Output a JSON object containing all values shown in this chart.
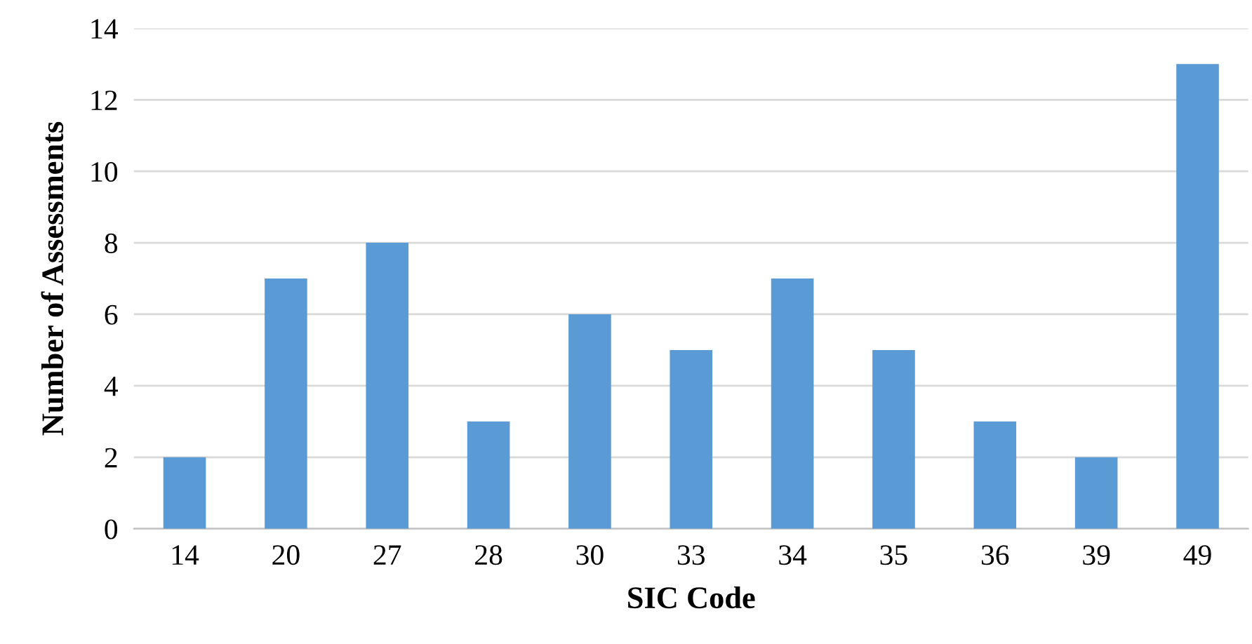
{
  "chart_data": {
    "type": "bar",
    "xlabel": "SIC Code",
    "ylabel": "Number of Assessments",
    "categories": [
      "14",
      "20",
      "27",
      "28",
      "30",
      "33",
      "34",
      "35",
      "36",
      "39",
      "49"
    ],
    "values": [
      2,
      7,
      8,
      3,
      6,
      5,
      7,
      5,
      3,
      2,
      13
    ],
    "color": "#5b9bd5",
    "ylim": [
      0,
      14
    ],
    "yticks": [
      0,
      2,
      4,
      6,
      8,
      10,
      12,
      14
    ],
    "grid": "y",
    "legend": false
  }
}
